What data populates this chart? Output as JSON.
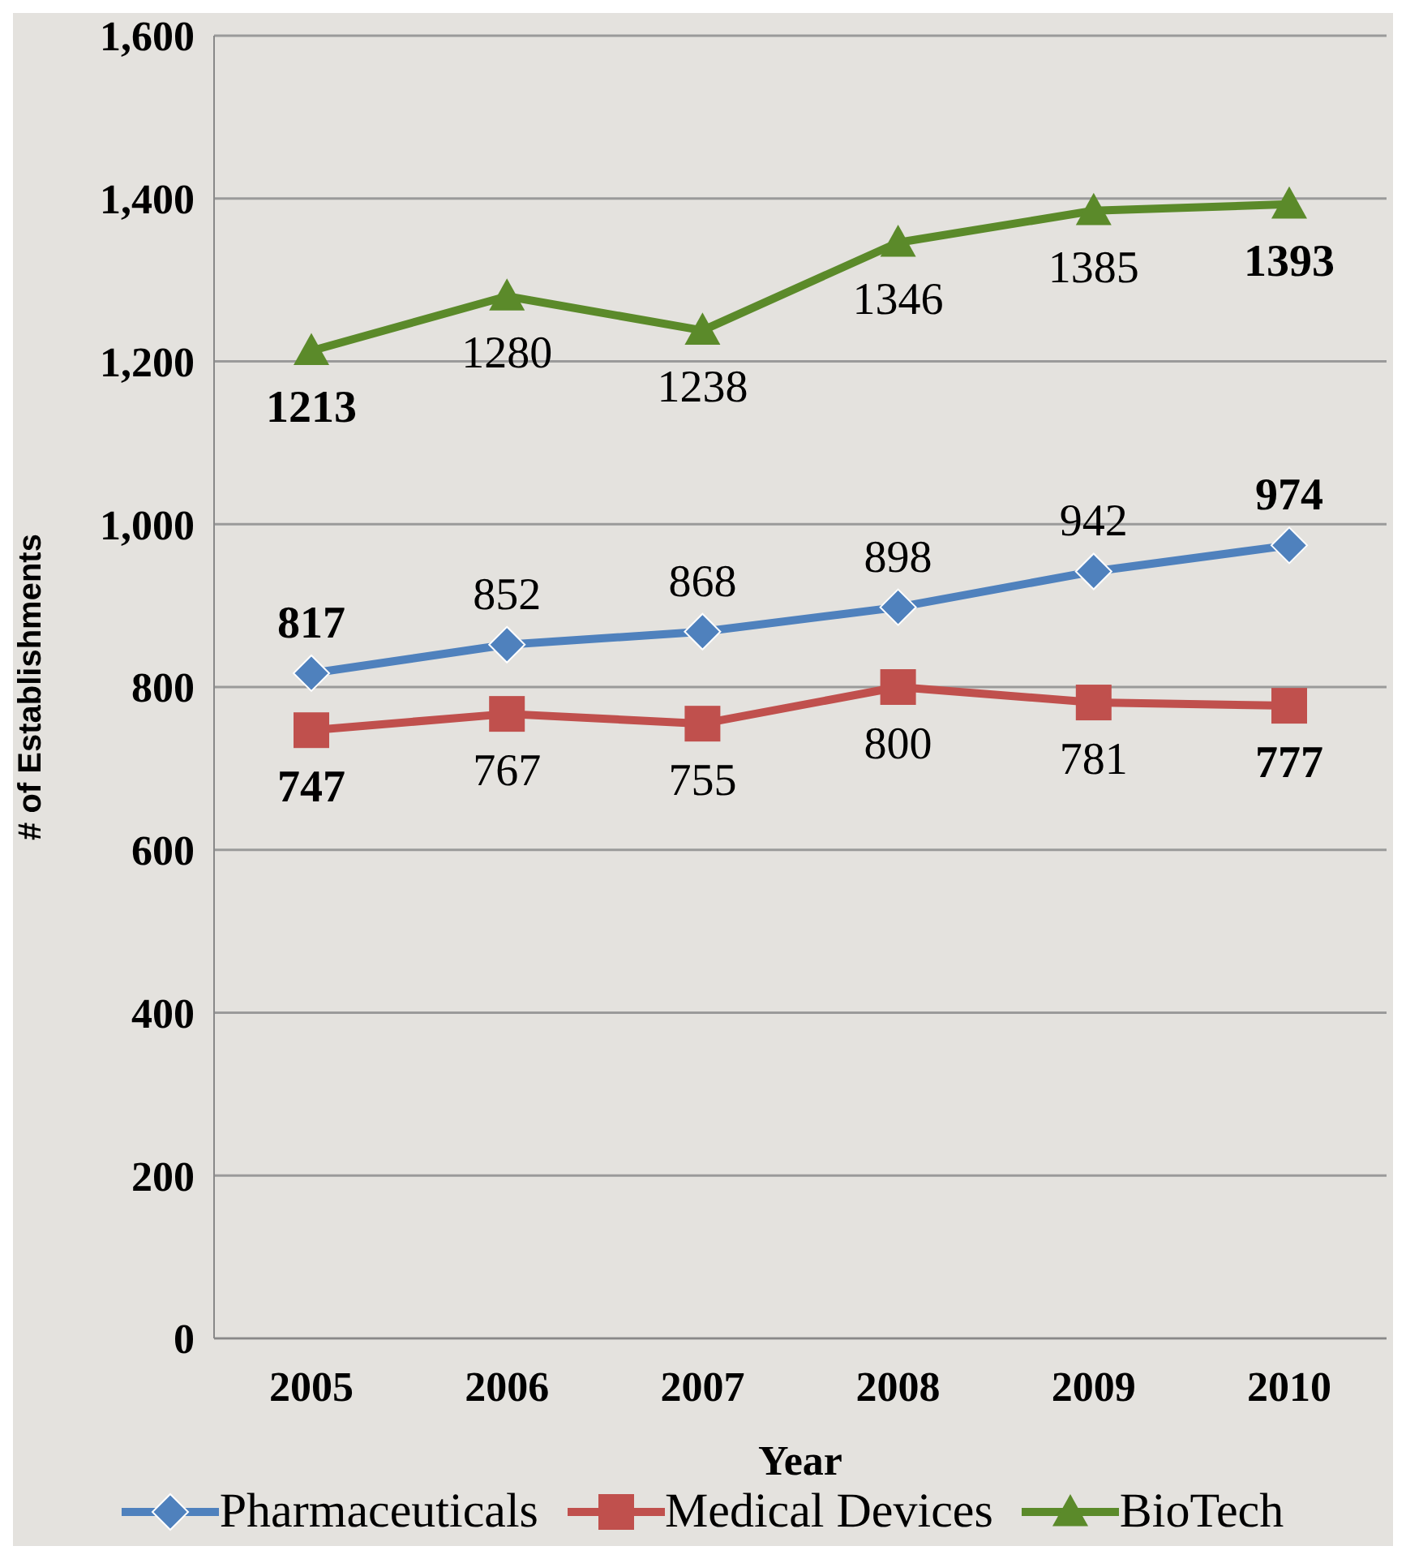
{
  "chart_data": {
    "type": "line",
    "xlabel": "Year",
    "ylabel": "# of Establishments",
    "categories": [
      "2005",
      "2006",
      "2007",
      "2008",
      "2009",
      "2010"
    ],
    "series": [
      {
        "name": "Pharmaceuticals",
        "color": "#4f81bd",
        "marker": "diamond",
        "values": [
          817,
          852,
          868,
          898,
          942,
          974
        ]
      },
      {
        "name": "Medical Devices",
        "color": "#c0504d",
        "marker": "square",
        "values": [
          747,
          767,
          755,
          800,
          781,
          777
        ]
      },
      {
        "name": "BioTech",
        "color": "#5b8a2a",
        "marker": "triangle",
        "values": [
          1213,
          1280,
          1238,
          1346,
          1385,
          1393
        ]
      }
    ],
    "ylim": [
      0,
      1600
    ],
    "yticks": [
      0,
      200,
      400,
      600,
      800,
      {
        "value": 1000,
        "label": "1,000"
      },
      {
        "value": 1200,
        "label": "1,200"
      },
      {
        "value": 1400,
        "label": "1,400"
      },
      {
        "value": 1600,
        "label": "1,600"
      }
    ],
    "grid": "y",
    "legend": "bottom",
    "data_labels": true,
    "line_style": "solid"
  }
}
